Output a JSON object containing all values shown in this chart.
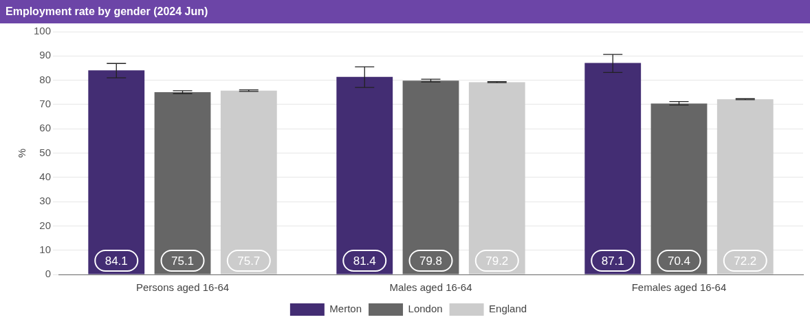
{
  "chart_data": {
    "type": "bar",
    "title": "Employment rate by gender (2024 Jun)",
    "ylabel": "%",
    "categories": [
      "Persons aged 16-64",
      "Males aged 16-64",
      "Females aged 16-64"
    ],
    "series": [
      {
        "name": "Merton",
        "color": "#432d73",
        "values": [
          84.1,
          81.4,
          87.1
        ],
        "errors": [
          [
            81.0,
            86.9
          ],
          [
            77.0,
            85.5
          ],
          [
            83.2,
            90.6
          ]
        ]
      },
      {
        "name": "London",
        "color": "#666666",
        "values": [
          75.1,
          79.8,
          70.4
        ],
        "errors": [
          [
            74.5,
            75.7
          ],
          [
            79.3,
            80.4
          ],
          [
            69.8,
            71.2
          ]
        ]
      },
      {
        "name": "England",
        "color": "#cccccc",
        "values": [
          75.7,
          79.2,
          72.2
        ],
        "errors": [
          [
            75.4,
            76.0
          ],
          [
            79.0,
            79.4
          ],
          [
            72.0,
            72.4
          ]
        ]
      }
    ],
    "ylim": [
      0,
      100
    ],
    "yticks": [
      0,
      10,
      20,
      30,
      40,
      50,
      60,
      70,
      80,
      90,
      100
    ],
    "grid": "y",
    "legend": "bottom",
    "data_labels": true
  }
}
